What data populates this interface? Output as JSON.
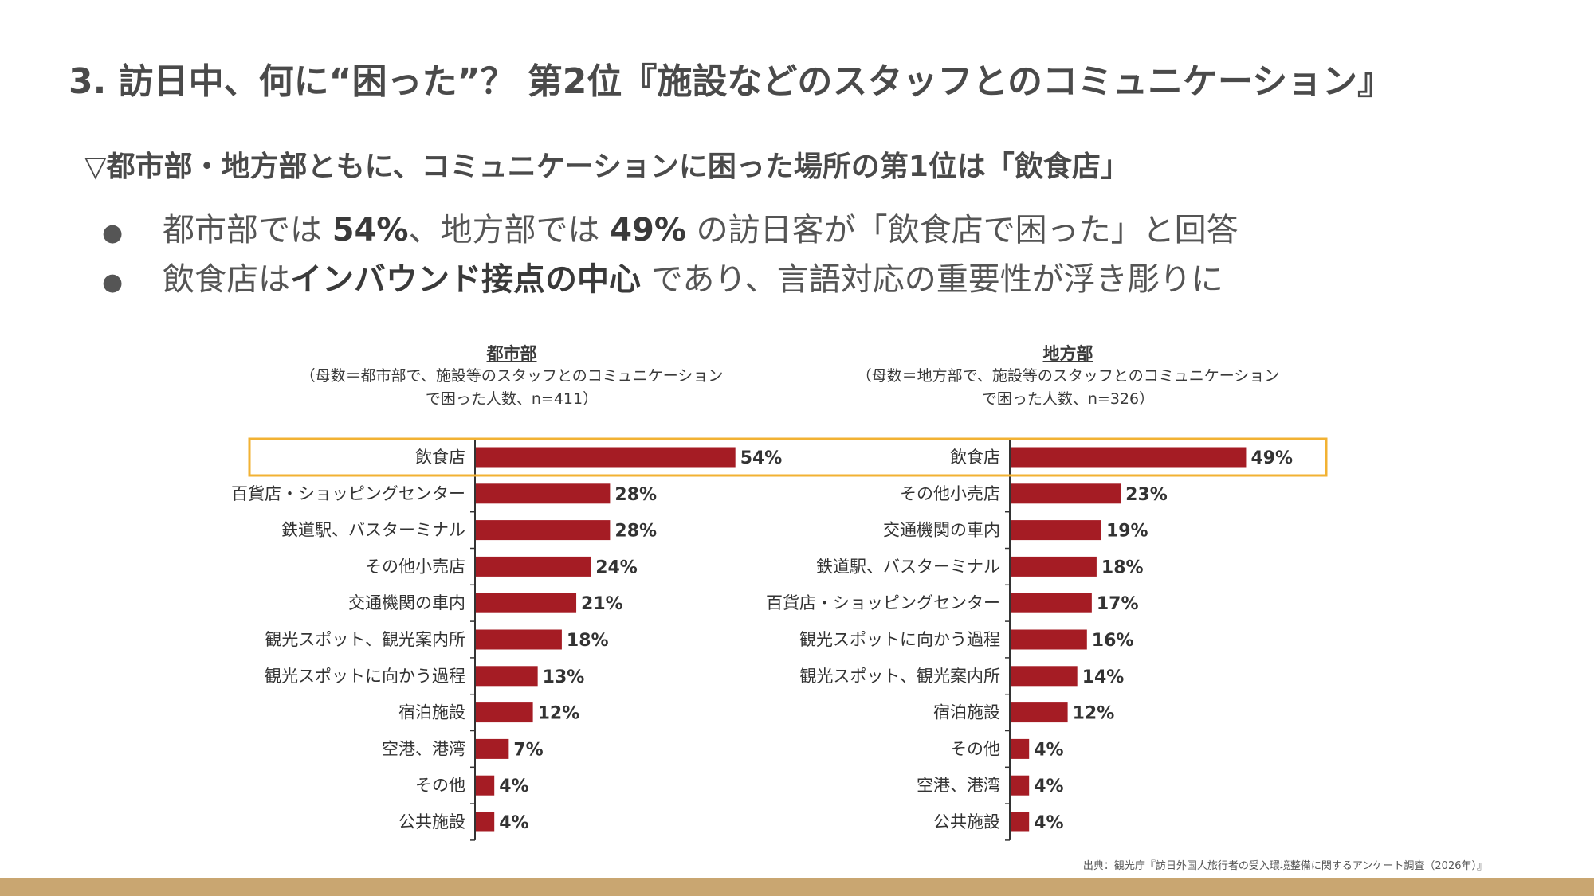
{
  "slide": {
    "title": "3. 訪日中、何に“困った”？ 第2位『施設などのスタッフとのコミュニケーション』",
    "subtitle": "▽都市部・地方部ともに、コミュニケーションに困った場所の第1位は「飲食店」",
    "bullet_mark": "●",
    "bullet1": {
      "a": "都市部では ",
      "b": "54%",
      "c": "、地方部では ",
      "d": "49%",
      "e": " の訪日客が「飲食店で困った」と回答"
    },
    "bullet2": {
      "a": "飲食店は",
      "b": "インバウンド接点の中心",
      "c": " であり、言語対応の重要性が浮き彫りに"
    },
    "source": "出典：観光庁『訪日外国人旅行者の受入環境整備に関するアンケート調査（2026年）』"
  },
  "colors": {
    "bar": "#a51c24",
    "highlight": "#f2b233",
    "footer": "#c9a671"
  },
  "chart_data": [
    {
      "type": "bar",
      "orientation": "horizontal",
      "title": "都市部",
      "note_line1": "（母数＝都市部で、施設等のスタッフとのコミュニケーション",
      "note_line2": "で困った人数、n=411）",
      "categories": [
        "飲食店",
        "百貨店・ショッピングセンター",
        "鉄道駅、バスターミナル",
        "その他小売店",
        "交通機関の車内",
        "観光スポット、観光案内所",
        "観光スポットに向かう過程",
        "宿泊施設",
        "空港、港湾",
        "その他",
        "公共施設"
      ],
      "values": [
        54,
        28,
        28,
        24,
        21,
        18,
        13,
        12,
        7,
        4,
        4
      ],
      "value_labels": [
        "54%",
        "28%",
        "28%",
        "24%",
        "21%",
        "18%",
        "13%",
        "12%",
        "7%",
        "4%",
        "4%"
      ],
      "unit": "%",
      "highlight_category": "飲食店"
    },
    {
      "type": "bar",
      "orientation": "horizontal",
      "title": "地方部",
      "note_line1": "（母数＝地方部で、施設等のスタッフとのコミュニケーション",
      "note_line2": "で困った人数、n=326）",
      "categories": [
        "飲食店",
        "その他小売店",
        "交通機関の車内",
        "鉄道駅、バスターミナル",
        "百貨店・ショッピングセンター",
        "観光スポットに向かう過程",
        "観光スポット、観光案内所",
        "宿泊施設",
        "その他",
        "空港、港湾",
        "公共施設"
      ],
      "values": [
        49,
        23,
        19,
        18,
        17,
        16,
        14,
        12,
        4,
        4,
        4
      ],
      "value_labels": [
        "49%",
        "23%",
        "19%",
        "18%",
        "17%",
        "16%",
        "14%",
        "12%",
        "4%",
        "4%",
        "4%"
      ],
      "unit": "%",
      "highlight_category": "飲食店"
    }
  ]
}
